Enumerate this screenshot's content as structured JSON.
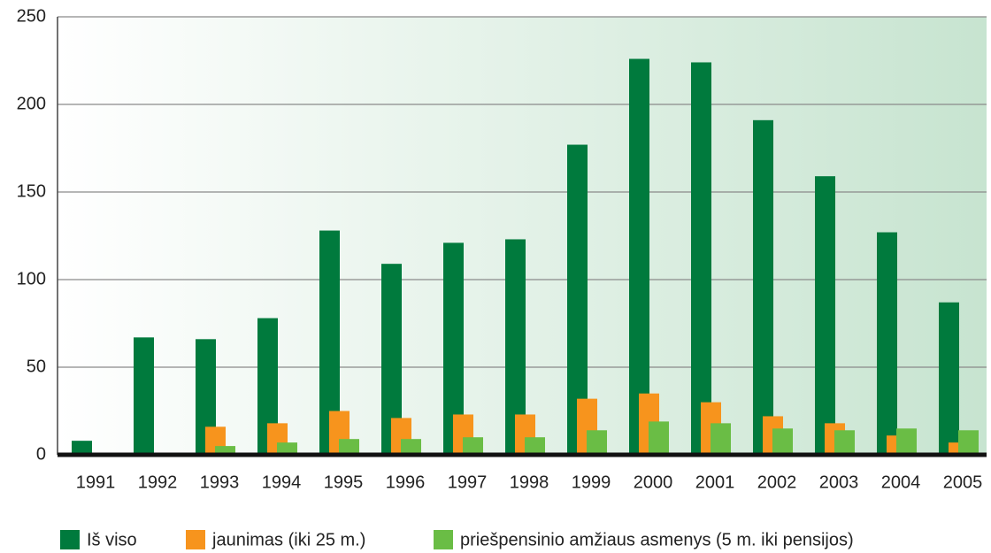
{
  "chart_data": {
    "type": "bar",
    "categories": [
      "1991",
      "1992",
      "1993",
      "1994",
      "1995",
      "1996",
      "1997",
      "1998",
      "1999",
      "2000",
      "2001",
      "2002",
      "2003",
      "2004",
      "2005"
    ],
    "series": [
      {
        "name": "Iš viso",
        "color": "#007a3d",
        "values": [
          8,
          67,
          66,
          78,
          128,
          109,
          121,
          123,
          177,
          226,
          224,
          191,
          159,
          127,
          87
        ]
      },
      {
        "name": "jaunimas (iki 25 m.)",
        "color": "#f7941d",
        "values": [
          0,
          0,
          16,
          18,
          25,
          21,
          23,
          23,
          32,
          35,
          30,
          22,
          18,
          11,
          7
        ]
      },
      {
        "name": "priešpensinio amžiaus asmenys (5 m. iki pensijos)",
        "color": "#6abd45",
        "values": [
          0,
          0,
          5,
          7,
          9,
          9,
          10,
          10,
          14,
          19,
          18,
          15,
          14,
          15,
          14
        ]
      }
    ],
    "ylim": [
      0,
      250
    ],
    "yticks": [
      0,
      50,
      100,
      150,
      200,
      250
    ],
    "grid": true,
    "legend": "bottom"
  }
}
